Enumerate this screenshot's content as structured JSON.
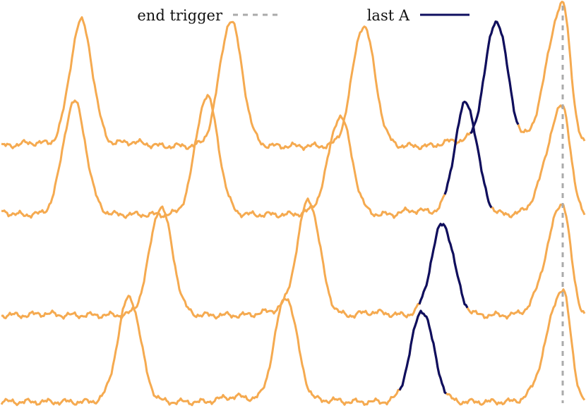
{
  "colors": {
    "signal": "#F5AA50",
    "last_a": "#0F0F5F",
    "end_trigger": "#AAAAAA",
    "background": "#FFFFFF"
  },
  "legend": {
    "end_trigger": "end trigger",
    "last_a": "last A"
  },
  "chart_data": {
    "type": "line",
    "title": "",
    "xlabel": "",
    "ylabel": "",
    "grid": false,
    "axes_visible": false,
    "legend_position": "top",
    "x_range": [
      0,
      828
    ],
    "y_range": [
      -25,
      210
    ],
    "end_trigger_x": 797,
    "series": [
      {
        "peaks": [
          [
            115,
            185
          ],
          [
            327,
            185
          ],
          [
            515,
            175
          ],
          [
            703,
            185
          ],
          [
            797,
            210
          ]
        ],
        "last_a_segment": [
          665,
          735
        ],
        "baseline": 5
      },
      {
        "peaks": [
          [
            105,
            165
          ],
          [
            293,
            175
          ],
          [
            482,
            145
          ],
          [
            660,
            165
          ],
          [
            797,
            160
          ]
        ],
        "last_a_segment": [
          630,
          697
        ],
        "baseline": 10
      },
      {
        "peaks": [
          [
            228,
            160
          ],
          [
            437,
            170
          ],
          [
            627,
            135
          ],
          [
            797,
            165
          ]
        ],
        "last_a_segment": [
          594,
          662
        ],
        "baseline": 5
      },
      {
        "peaks": [
          [
            183,
            155
          ],
          [
            405,
            155
          ],
          [
            598,
            135
          ],
          [
            797,
            160
          ]
        ],
        "last_a_segment": [
          565,
          632
        ],
        "baseline": 5
      }
    ]
  }
}
